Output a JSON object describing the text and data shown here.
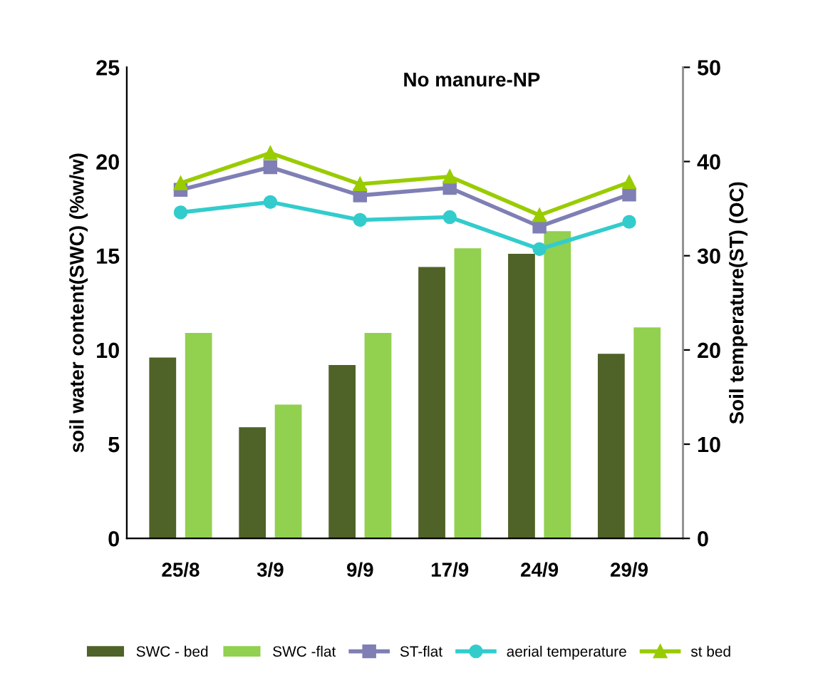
{
  "chart_data": {
    "type": "bar",
    "title": "No manure-NP",
    "ylabel": "soil water content(SWC) (%w/w)",
    "y2label": "Soil temperature(ST) (OC)",
    "categories": [
      "25/8",
      "3/9",
      "9/9",
      "17/9",
      "24/9",
      "29/9"
    ],
    "series": [
      {
        "name": "SWC - bed",
        "color": "#4f6228",
        "values": [
          9.6,
          5.9,
          9.2,
          14.4,
          15.1,
          9.8
        ]
      },
      {
        "name": "SWC -flat",
        "color": "#92d050",
        "values": [
          10.9,
          7.1,
          10.9,
          15.4,
          16.3,
          11.2
        ]
      },
      {
        "name": "ST-flat",
        "type": "line",
        "axis": "y2",
        "marker": "square",
        "color": "#7f7fb5",
        "values": [
          37.0,
          39.4,
          36.4,
          37.2,
          33.1,
          36.5
        ]
      },
      {
        "name": "aerial temperature",
        "type": "line",
        "axis": "y2",
        "marker": "circle",
        "color": "#33cccc",
        "values": [
          34.6,
          35.7,
          33.8,
          34.1,
          30.7,
          33.6
        ]
      },
      {
        "name": "st bed",
        "type": "line",
        "axis": "y2",
        "marker": "triangle",
        "color": "#99cc00",
        "values": [
          37.7,
          40.9,
          37.6,
          38.4,
          34.3,
          37.8
        ]
      }
    ],
    "ylim": [
      0,
      25
    ],
    "yticks": [
      0,
      5,
      10,
      15,
      20,
      25
    ],
    "y2lim": [
      0,
      50
    ],
    "y2ticks": [
      0,
      10,
      20,
      30,
      40,
      50
    ],
    "grid": false,
    "legend": "bottom"
  }
}
